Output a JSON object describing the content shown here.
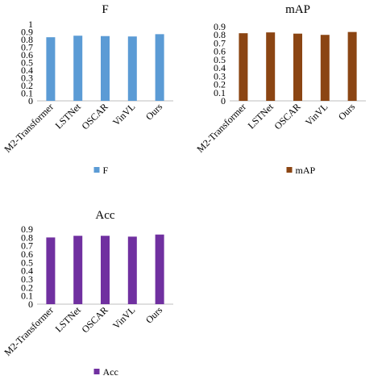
{
  "chart_data": [
    {
      "type": "bar",
      "title": "F",
      "categories": [
        "M2-Transformer",
        "LSTNet",
        "OSCAR",
        "VinVL",
        "Ours"
      ],
      "series": [
        {
          "name": "F",
          "values": [
            0.83,
            0.85,
            0.845,
            0.84,
            0.87
          ]
        }
      ],
      "yticks": [
        "0",
        "0.1",
        "0.2",
        "0.3",
        "0.4",
        "0.5",
        "0.6",
        "0.7",
        "0.8",
        "0.9",
        "1"
      ],
      "ylim": [
        0,
        1
      ],
      "grid": false,
      "legend": "bottom",
      "color": "#5B9BD5"
    },
    {
      "type": "bar",
      "title": "mAP",
      "categories": [
        "M2-Transformer",
        "LSTNet",
        "OSCAR",
        "VinVL",
        "Ours"
      ],
      "series": [
        {
          "name": "mAP",
          "values": [
            0.82,
            0.83,
            0.815,
            0.8,
            0.835
          ]
        }
      ],
      "yticks": [
        "0",
        "0.1",
        "0.2",
        "0.3",
        "0.4",
        "0.5",
        "0.6",
        "0.7",
        "0.8",
        "0.9"
      ],
      "ylim": [
        0,
        0.9
      ],
      "grid": false,
      "legend": "bottom",
      "color": "#8B4513"
    },
    {
      "type": "bar",
      "title": "Acc",
      "categories": [
        "M2-Transformer",
        "LSTNet",
        "OSCAR",
        "VinVL",
        "Ours"
      ],
      "series": [
        {
          "name": "Acc",
          "values": [
            0.8,
            0.82,
            0.82,
            0.81,
            0.835
          ]
        }
      ],
      "yticks": [
        "0",
        "0.1",
        "0.2",
        "0.3",
        "0.4",
        "0.5",
        "0.6",
        "0.7",
        "0.8",
        "0.9"
      ],
      "ylim": [
        0,
        0.9
      ],
      "grid": false,
      "legend": "bottom",
      "color": "#7030A0"
    }
  ]
}
